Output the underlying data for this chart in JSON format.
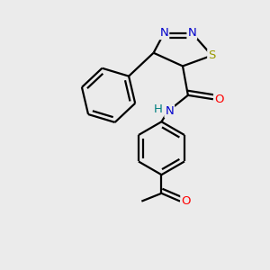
{
  "bg_color": "#ebebeb",
  "bond_color": "#000000",
  "line_width": 1.6,
  "atom_colors": {
    "N": "#0000cc",
    "S": "#999900",
    "O": "#ff0000",
    "H": "#008080",
    "C": "#000000"
  },
  "font_size": 9.5
}
